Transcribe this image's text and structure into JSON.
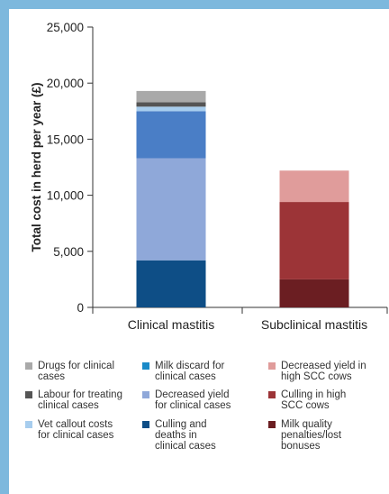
{
  "colors": {
    "frame": "#7db8dd",
    "axis": "#333333"
  },
  "chart_data": {
    "type": "bar",
    "stacked": true,
    "categories": [
      "Clinical mastitis",
      "Subclinical mastitis"
    ],
    "ylabel": "Total cost in herd per year (£)",
    "xlabel": "",
    "ylim": [
      0,
      25000
    ],
    "yticks": [
      "0",
      "5,000",
      "10,000",
      "15,000",
      "20,000",
      "25,000"
    ],
    "ytick_values": [
      0,
      5000,
      10000,
      15000,
      20000,
      25000
    ],
    "grid": false,
    "legend_position": "bottom",
    "series": [
      {
        "name": "Culling and\ndeaths in\nclinical cases",
        "color": "#0e4e86",
        "values": [
          4200,
          0
        ]
      },
      {
        "name": "Decreased yield\nfor clinical cases",
        "color": "#8fa8d9",
        "values": [
          9100,
          0
        ]
      },
      {
        "name": "Milk discard for\nclinical cases",
        "color": "#4a7ec6",
        "values": [
          4200,
          0
        ]
      },
      {
        "name": "Vet callout costs\nfor clinical cases",
        "color": "#a7cdee",
        "values": [
          400,
          0
        ]
      },
      {
        "name": "Labour for treating\nclinical cases",
        "color": "#555555",
        "values": [
          400,
          0
        ]
      },
      {
        "name": "Drugs for clinical\ncases",
        "color": "#a9a9a9",
        "values": [
          1000,
          0
        ]
      },
      {
        "name": "Milk quality\npenalties/lost\nbonuses",
        "color": "#6b1e22",
        "values": [
          0,
          2500
        ]
      },
      {
        "name": "Culling in high\nSCC cows",
        "color": "#9c3437",
        "values": [
          0,
          6900
        ]
      },
      {
        "name": "Decreased yield in\nhigh SCC cows",
        "color": "#e09c9b",
        "values": [
          0,
          2800
        ]
      }
    ]
  },
  "legend": [
    {
      "label": "Drugs for clinical\ncases",
      "color": "#a9a9a9"
    },
    {
      "label": "Milk discard for\nclinical cases",
      "color": "#1a8ac8"
    },
    {
      "label": "Decreased yield in\nhigh SCC cows",
      "color": "#e09c9b"
    },
    {
      "label": "Labour for treating\nclinical cases",
      "color": "#555555"
    },
    {
      "label": "Decreased yield\nfor clinical cases",
      "color": "#8fa8d9"
    },
    {
      "label": "Culling in high\nSCC cows",
      "color": "#9c3437"
    },
    {
      "label": "Vet callout costs\nfor clinical cases",
      "color": "#a7cdee"
    },
    {
      "label": "Culling and\ndeaths in\nclinical cases",
      "color": "#0e4e86"
    },
    {
      "label": "Milk quality\npenalties/lost\nbonuses",
      "color": "#6b1e22"
    }
  ]
}
